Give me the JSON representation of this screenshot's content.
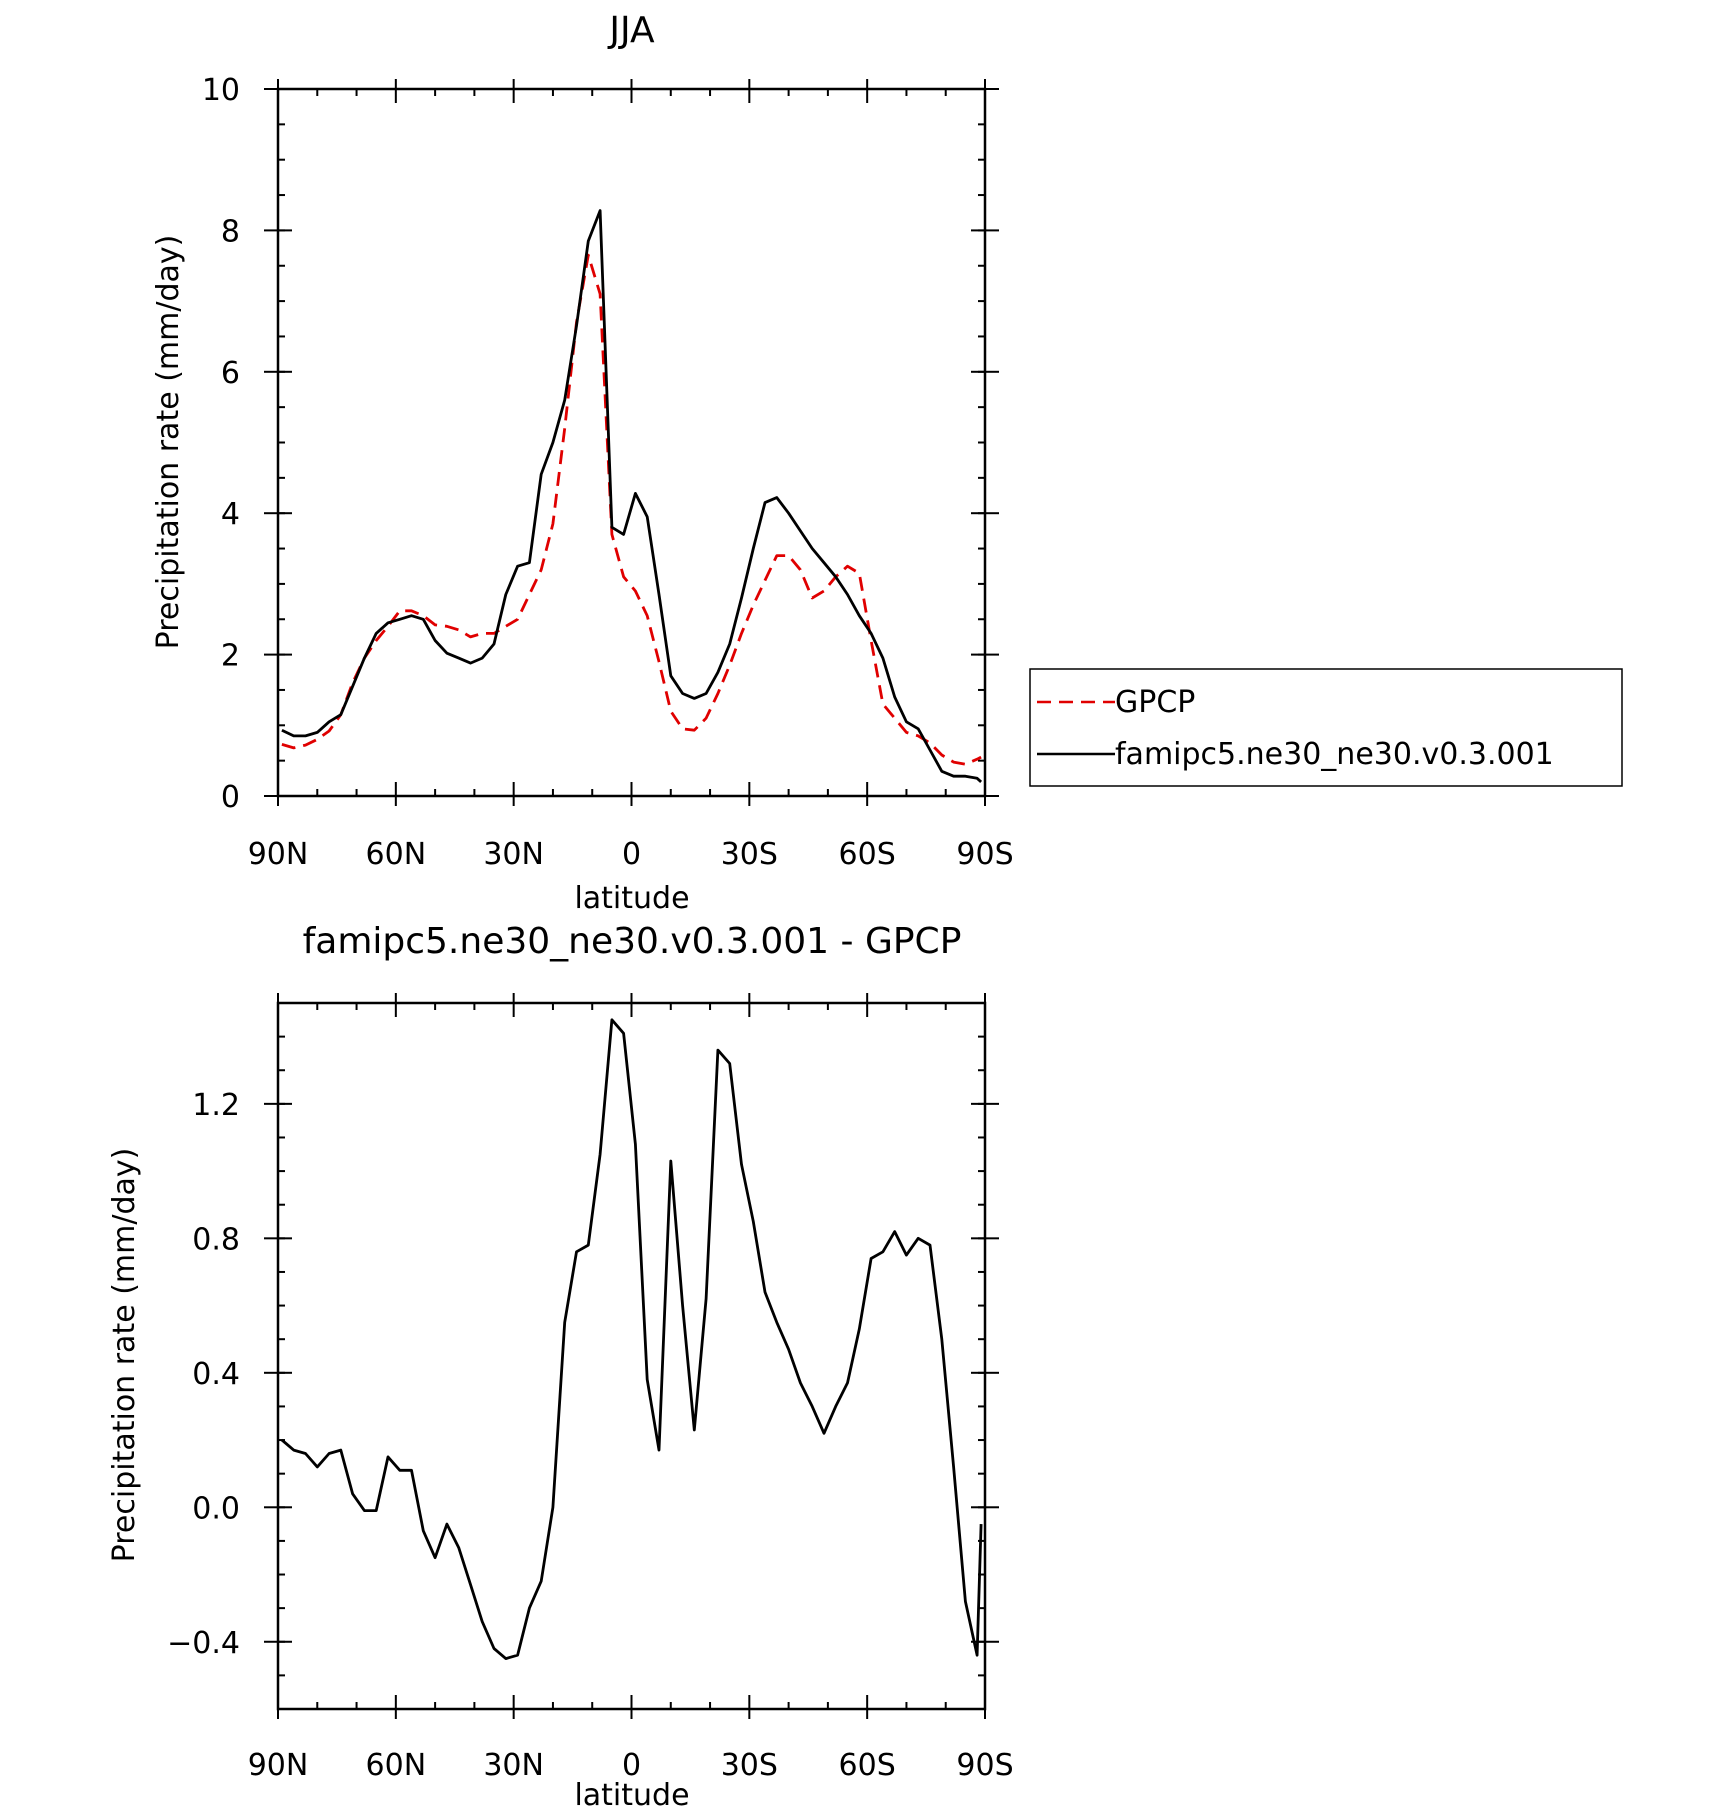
{
  "chart_data": [
    {
      "type": "line",
      "title": "JJA",
      "xlabel": "latitude",
      "ylabel": "Precipitation rate (mm/day)",
      "x_ticks": [
        "90N",
        "60N",
        "30N",
        "0",
        "30S",
        "60S",
        "90S"
      ],
      "y_ticks": [
        "0",
        "2",
        "4",
        "6",
        "8",
        "10"
      ],
      "xlim": [
        90,
        -90
      ],
      "ylim": [
        0,
        10
      ],
      "legend_position": "right",
      "series": [
        {
          "name": "GPCP",
          "color": "#e00000",
          "style": "dashed",
          "x": [
            89,
            86,
            83,
            80,
            77,
            74,
            71,
            68,
            65,
            62,
            59,
            56,
            53,
            50,
            47,
            44,
            41,
            38,
            35,
            32,
            29,
            26,
            23,
            20,
            17,
            14,
            11,
            8,
            5,
            2,
            -1,
            -4,
            -7,
            -10,
            -13,
            -16,
            -19,
            -22,
            -25,
            -28,
            -31,
            -34,
            -37,
            -40,
            -43,
            -46,
            -49,
            -52,
            -55,
            -58,
            -61,
            -64,
            -67,
            -70,
            -73,
            -76,
            -79,
            -82,
            -85,
            -88,
            -89
          ],
          "y": [
            0.73,
            0.68,
            0.72,
            0.8,
            0.92,
            1.15,
            1.6,
            1.95,
            2.2,
            2.4,
            2.62,
            2.62,
            2.55,
            2.42,
            2.4,
            2.35,
            2.25,
            2.3,
            2.3,
            2.4,
            2.5,
            2.85,
            3.2,
            3.85,
            5.2,
            6.7,
            7.65,
            7.1,
            3.7,
            3.1,
            2.9,
            2.55,
            1.9,
            1.2,
            0.95,
            0.93,
            1.1,
            1.45,
            1.85,
            2.3,
            2.7,
            3.05,
            3.4,
            3.4,
            3.2,
            2.8,
            2.9,
            3.1,
            3.25,
            3.15,
            2.2,
            1.3,
            1.1,
            0.9,
            0.85,
            0.75,
            0.58,
            0.48,
            0.45,
            0.52,
            0.55
          ]
        },
        {
          "name": "famipc5.ne30_ne30.v0.3.001",
          "color": "#000000",
          "style": "solid",
          "x": [
            89,
            86,
            83,
            80,
            77,
            74,
            71,
            68,
            65,
            62,
            59,
            56,
            53,
            50,
            47,
            44,
            41,
            38,
            35,
            32,
            29,
            26,
            23,
            20,
            17,
            14,
            11,
            8,
            5,
            2,
            -1,
            -4,
            -7,
            -10,
            -13,
            -16,
            -19,
            -22,
            -25,
            -28,
            -31,
            -34,
            -37,
            -40,
            -43,
            -46,
            -49,
            -52,
            -55,
            -58,
            -61,
            -64,
            -67,
            -70,
            -73,
            -76,
            -79,
            -82,
            -85,
            -88,
            -89
          ],
          "y": [
            0.93,
            0.85,
            0.85,
            0.9,
            1.05,
            1.15,
            1.55,
            1.95,
            2.3,
            2.45,
            2.5,
            2.55,
            2.5,
            2.2,
            2.02,
            1.95,
            1.88,
            1.95,
            2.15,
            2.85,
            3.25,
            3.3,
            4.55,
            5.0,
            5.6,
            6.65,
            7.85,
            8.28,
            3.8,
            3.7,
            4.28,
            3.95,
            2.85,
            1.7,
            1.45,
            1.38,
            1.45,
            1.75,
            2.15,
            2.8,
            3.5,
            4.15,
            4.22,
            4.0,
            3.75,
            3.5,
            3.3,
            3.1,
            2.85,
            2.55,
            2.3,
            1.95,
            1.4,
            1.05,
            0.95,
            0.65,
            0.35,
            0.28,
            0.28,
            0.25,
            0.2
          ]
        }
      ]
    },
    {
      "type": "line",
      "title": "famipc5.ne30_ne30.v0.3.001 - GPCP",
      "xlabel": "latitude",
      "ylabel": "Precipitation rate (mm/day)",
      "x_ticks": [
        "90N",
        "60N",
        "30N",
        "0",
        "30S",
        "60S",
        "90S"
      ],
      "y_ticks": [
        "-0.4",
        "0.0",
        "0.4",
        "0.8",
        "1.2"
      ],
      "xlim": [
        90,
        -90
      ],
      "ylim": [
        -0.6,
        1.5
      ],
      "series": [
        {
          "color": "#000000",
          "style": "solid",
          "x": [
            89,
            86,
            83,
            80,
            77,
            74,
            71,
            68,
            65,
            62,
            59,
            56,
            53,
            50,
            47,
            44,
            41,
            38,
            35,
            32,
            29,
            26,
            23,
            20,
            17,
            14,
            11,
            8,
            5,
            2,
            -1,
            -4,
            -7,
            -10,
            -13,
            -16,
            -19,
            -22,
            -25,
            -28,
            -31,
            -34,
            -37,
            -40,
            -43,
            -46,
            -49,
            -52,
            -55,
            -58,
            -61,
            -64,
            -67,
            -70,
            -73,
            -76,
            -79,
            -82,
            -85,
            -88,
            -89
          ],
          "y": [
            0.2,
            0.17,
            0.16,
            0.12,
            0.16,
            0.17,
            0.04,
            -0.01,
            -0.01,
            0.15,
            0.11,
            0.11,
            -0.07,
            -0.15,
            -0.05,
            -0.12,
            -0.23,
            -0.34,
            -0.42,
            -0.45,
            -0.44,
            -0.3,
            -0.22,
            0.0,
            0.55,
            0.76,
            0.78,
            1.05,
            1.45,
            1.41,
            1.08,
            0.38,
            0.17,
            1.03,
            0.6,
            0.23,
            0.62,
            1.36,
            1.32,
            1.02,
            0.85,
            0.64,
            0.55,
            0.47,
            0.37,
            0.3,
            0.22,
            0.3,
            0.37,
            0.53,
            0.74,
            0.76,
            0.82,
            0.75,
            0.8,
            0.78,
            0.5,
            0.12,
            -0.28,
            -0.44,
            -0.05
          ]
        }
      ]
    }
  ]
}
